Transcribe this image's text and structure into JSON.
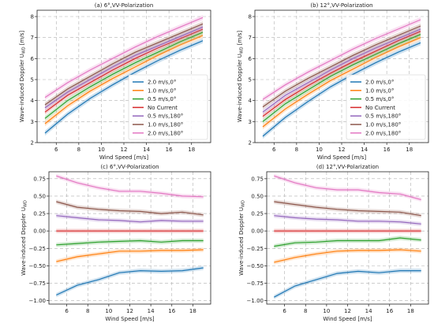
{
  "figure": {
    "legend_entries": [
      "2.0 m/s,0°",
      "1.0 m/s,0°",
      "0.5 m/s,0°",
      "No Current",
      "0.5 m/s,180°",
      "1.0 m/s,180°",
      "2.0 m/s,180°"
    ],
    "colors": [
      "#1f77b4",
      "#ff7f0e",
      "#2ca02c",
      "#d62728",
      "#9467bd",
      "#8c564b",
      "#e377c2"
    ]
  },
  "chart_data": [
    {
      "type": "line",
      "title": "(a) 6°,VV-Polarization",
      "xlabel": "Wind Speed [m/s]",
      "ylabel": "Wave-induced Doppler U",
      "ylabel_sub": "WD",
      "ylabel_unit": " [m/s]",
      "xlim": [
        4.3,
        19.7
      ],
      "ylim": [
        2,
        8.3
      ],
      "xticks": [
        6,
        8,
        10,
        12,
        14,
        16,
        18
      ],
      "yticks": [
        2,
        3,
        4,
        5,
        6,
        7,
        8
      ],
      "grid": true,
      "legend_position": "lower-right",
      "band": 0.12,
      "x": [
        5,
        7,
        9,
        11,
        13,
        15,
        17,
        19
      ],
      "series": [
        {
          "name": "2.0 m/s,0°",
          "values": [
            2.45,
            3.35,
            4.1,
            4.75,
            5.35,
            5.9,
            6.4,
            6.85
          ]
        },
        {
          "name": "1.0 m/s,0°",
          "values": [
            2.9,
            3.75,
            4.45,
            5.05,
            5.6,
            6.15,
            6.65,
            7.1
          ]
        },
        {
          "name": "0.5 m/s,0°",
          "values": [
            3.15,
            4.0,
            4.65,
            5.25,
            5.8,
            6.3,
            6.8,
            7.25
          ]
        },
        {
          "name": "No Current",
          "values": [
            3.45,
            4.25,
            4.85,
            5.45,
            6.0,
            6.5,
            6.95,
            7.4
          ]
        },
        {
          "name": "0.5 m/s,180°",
          "values": [
            3.65,
            4.4,
            5.0,
            5.6,
            6.15,
            6.6,
            7.05,
            7.5
          ]
        },
        {
          "name": "1.0 m/s,180°",
          "values": [
            3.8,
            4.55,
            5.15,
            5.75,
            6.3,
            6.75,
            7.2,
            7.65
          ]
        },
        {
          "name": "2.0 m/s,180°",
          "values": [
            4.15,
            4.85,
            5.45,
            6.0,
            6.55,
            7.05,
            7.5,
            7.95
          ]
        }
      ]
    },
    {
      "type": "line",
      "title": "(b) 12°,VV-Polarization",
      "xlabel": "Wind Speed [m/s]",
      "ylabel": "Wave-induced Doppler U",
      "ylabel_sub": "WD",
      "ylabel_unit": " [m/s]",
      "xlim": [
        4.3,
        19.7
      ],
      "ylim": [
        2,
        8.3
      ],
      "xticks": [
        6,
        8,
        10,
        12,
        14,
        16,
        18
      ],
      "yticks": [
        2,
        3,
        4,
        5,
        6,
        7,
        8
      ],
      "grid": true,
      "legend_position": "lower-right",
      "band": 0.12,
      "x": [
        5,
        7,
        9,
        11,
        13,
        15,
        17,
        19
      ],
      "series": [
        {
          "name": "2.0 m/s,0°",
          "values": [
            2.3,
            3.2,
            3.95,
            4.65,
            5.25,
            5.8,
            6.3,
            6.75
          ]
        },
        {
          "name": "1.0 m/s,0°",
          "values": [
            2.75,
            3.6,
            4.3,
            4.95,
            5.5,
            6.05,
            6.55,
            7.0
          ]
        },
        {
          "name": "0.5 m/s,0°",
          "values": [
            3.0,
            3.85,
            4.5,
            5.15,
            5.7,
            6.2,
            6.7,
            7.15
          ]
        },
        {
          "name": "No Current",
          "values": [
            3.25,
            4.05,
            4.7,
            5.3,
            5.85,
            6.35,
            6.85,
            7.3
          ]
        },
        {
          "name": "0.5 m/s,180°",
          "values": [
            3.45,
            4.25,
            4.85,
            5.45,
            6.0,
            6.5,
            6.95,
            7.4
          ]
        },
        {
          "name": "1.0 m/s,180°",
          "values": [
            3.7,
            4.45,
            5.05,
            5.6,
            6.15,
            6.65,
            7.1,
            7.55
          ]
        },
        {
          "name": "2.0 m/s,180°",
          "values": [
            4.05,
            4.75,
            5.35,
            5.9,
            6.45,
            6.95,
            7.4,
            7.85
          ]
        }
      ]
    },
    {
      "type": "line",
      "title": "(c) 6°,VV-Polarization",
      "xlabel": "Wind Speed [m/s]",
      "ylabel": "Wave-induced Doppler U",
      "ylabel_sub": "WD",
      "ylabel_unit": "",
      "xlim": [
        4.3,
        19.7
      ],
      "ylim": [
        -1.05,
        0.85
      ],
      "xticks": [
        6,
        8,
        10,
        12,
        14,
        16,
        18
      ],
      "yticks": [
        -1.0,
        -0.75,
        -0.5,
        -0.25,
        0.0,
        0.25,
        0.5,
        0.75
      ],
      "ytick_labels": [
        "−1.00",
        "−0.75",
        "−0.50",
        "−0.25",
        "0.00",
        "0.25",
        "0.50",
        "0.75"
      ],
      "grid": true,
      "band": 0.03,
      "x": [
        5,
        7,
        9,
        11,
        13,
        15,
        17,
        19
      ],
      "series": [
        {
          "values": [
            -0.92,
            -0.78,
            -0.7,
            -0.6,
            -0.57,
            -0.58,
            -0.57,
            -0.53
          ]
        },
        {
          "values": [
            -0.44,
            -0.37,
            -0.33,
            -0.29,
            -0.29,
            -0.28,
            -0.28,
            -0.27
          ]
        },
        {
          "values": [
            -0.2,
            -0.18,
            -0.16,
            -0.15,
            -0.14,
            -0.16,
            -0.14,
            -0.14
          ]
        },
        {
          "values": [
            0.0,
            0.0,
            0.0,
            0.0,
            0.0,
            0.0,
            0.0,
            0.0
          ]
        },
        {
          "values": [
            0.22,
            0.19,
            0.16,
            0.15,
            0.13,
            0.15,
            0.14,
            0.14
          ]
        },
        {
          "values": [
            0.42,
            0.34,
            0.31,
            0.29,
            0.28,
            0.25,
            0.27,
            0.23
          ]
        },
        {
          "values": [
            0.79,
            0.69,
            0.62,
            0.57,
            0.57,
            0.54,
            0.5,
            0.49
          ]
        }
      ]
    },
    {
      "type": "line",
      "title": "(d) 12°,VV-Polarization",
      "xlabel": "Wind Speed [m/s]",
      "ylabel": "Wave-induced Doppler U",
      "ylabel_sub": "WD",
      "ylabel_unit": "",
      "xlim": [
        4.3,
        19.7
      ],
      "ylim": [
        -1.05,
        0.85
      ],
      "xticks": [
        6,
        8,
        10,
        12,
        14,
        16,
        18
      ],
      "yticks": [
        -1.0,
        -0.75,
        -0.5,
        -0.25,
        0.0,
        0.25,
        0.5,
        0.75
      ],
      "ytick_labels": [
        "−1.00",
        "−0.75",
        "−0.50",
        "−0.25",
        "0.00",
        "0.25",
        "0.50",
        "0.75"
      ],
      "grid": true,
      "band": 0.03,
      "x": [
        5,
        7,
        9,
        11,
        13,
        15,
        17,
        19
      ],
      "series": [
        {
          "values": [
            -0.95,
            -0.79,
            -0.7,
            -0.61,
            -0.58,
            -0.6,
            -0.57,
            -0.57
          ]
        },
        {
          "values": [
            -0.45,
            -0.38,
            -0.33,
            -0.29,
            -0.28,
            -0.28,
            -0.27,
            -0.29
          ]
        },
        {
          "values": [
            -0.22,
            -0.17,
            -0.16,
            -0.14,
            -0.14,
            -0.14,
            -0.1,
            -0.13
          ]
        },
        {
          "values": [
            0.0,
            0.0,
            0.0,
            0.0,
            0.0,
            0.0,
            0.0,
            0.0
          ]
        },
        {
          "values": [
            0.22,
            0.19,
            0.17,
            0.16,
            0.14,
            0.14,
            0.13,
            0.1
          ]
        },
        {
          "values": [
            0.42,
            0.38,
            0.34,
            0.31,
            0.29,
            0.28,
            0.27,
            0.22
          ]
        },
        {
          "values": [
            0.79,
            0.69,
            0.62,
            0.59,
            0.59,
            0.55,
            0.53,
            0.45
          ]
        }
      ]
    }
  ]
}
